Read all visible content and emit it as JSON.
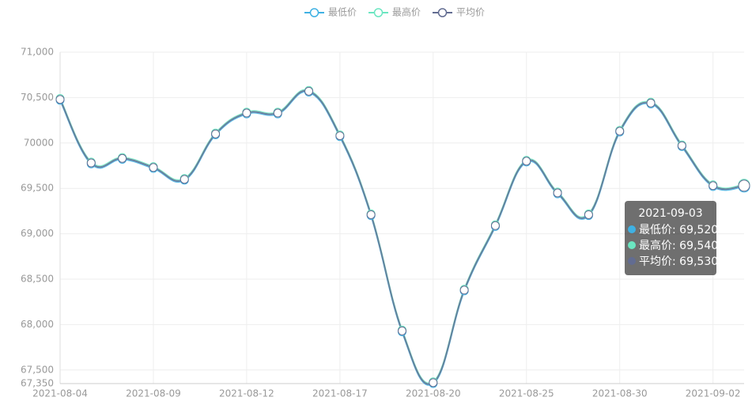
{
  "chart_data": {
    "type": "line",
    "categories": [
      "2021-08-04",
      null,
      null,
      "2021-08-09",
      null,
      null,
      "2021-08-12",
      null,
      null,
      "2021-08-17",
      null,
      null,
      "2021-08-20",
      null,
      null,
      "2021-08-25",
      null,
      null,
      "2021-08-30",
      null,
      null,
      "2021-09-02",
      "2021-09-03"
    ],
    "xlabel_interval": 3,
    "series": [
      {
        "name": "最低价",
        "color": "#3fb1e3",
        "values": [
          70470,
          69770,
          69820,
          69720,
          69590,
          70090,
          70320,
          70320,
          70560,
          70070,
          69200,
          67920,
          67350,
          68370,
          69080,
          69790,
          69440,
          69200,
          70120,
          70430,
          69960,
          69520,
          69520
        ],
        "value_labels": [
          null,
          null,
          null,
          null,
          null,
          null,
          null,
          null,
          null,
          null,
          null,
          null,
          null,
          null,
          null,
          null,
          null,
          null,
          null,
          null,
          null,
          null,
          "69,520"
        ]
      },
      {
        "name": "最高价",
        "color": "#6be6c1",
        "values": [
          70490,
          69790,
          69840,
          69740,
          69610,
          70110,
          70340,
          70340,
          70580,
          70090,
          69220,
          67940,
          67370,
          68390,
          69100,
          69810,
          69460,
          69220,
          70140,
          70450,
          69980,
          69540,
          69540
        ],
        "value_labels": [
          null,
          null,
          null,
          null,
          null,
          null,
          null,
          null,
          null,
          null,
          null,
          null,
          null,
          null,
          null,
          null,
          null,
          null,
          null,
          null,
          null,
          null,
          "69,540"
        ]
      },
      {
        "name": "平均价",
        "color": "#626c91",
        "values": [
          70480,
          69780,
          69830,
          69730,
          69600,
          70100,
          70330,
          70330,
          70570,
          70080,
          69210,
          67930,
          67360,
          68380,
          69090,
          69800,
          69450,
          69210,
          70130,
          70440,
          69970,
          69530,
          69530
        ],
        "value_labels": [
          null,
          null,
          null,
          null,
          null,
          null,
          null,
          null,
          null,
          null,
          null,
          null,
          null,
          null,
          null,
          null,
          null,
          null,
          null,
          null,
          null,
          null,
          "69,530"
        ]
      }
    ],
    "ylim": [
      67350,
      71000
    ],
    "yticks": [
      {
        "value": 67350,
        "label": "67,350"
      },
      {
        "value": 67500,
        "label": "67,500"
      },
      {
        "value": 68000,
        "label": "68,000"
      },
      {
        "value": 68500,
        "label": "68,500"
      },
      {
        "value": 69000,
        "label": "69,000"
      },
      {
        "value": 69500,
        "label": "69,500"
      },
      {
        "value": 70000,
        "label": "70000"
      },
      {
        "value": 70500,
        "label": "70,500"
      },
      {
        "value": 71000,
        "label": "71,000"
      }
    ],
    "grid": true,
    "legend": "top",
    "tooltip_index": 22
  }
}
